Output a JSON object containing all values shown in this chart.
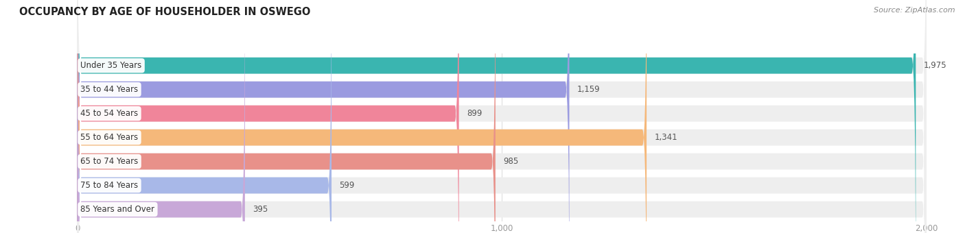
{
  "title": "OCCUPANCY BY AGE OF HOUSEHOLDER IN OSWEGO",
  "source": "Source: ZipAtlas.com",
  "categories": [
    "Under 35 Years",
    "35 to 44 Years",
    "45 to 54 Years",
    "55 to 64 Years",
    "65 to 74 Years",
    "75 to 84 Years",
    "85 Years and Over"
  ],
  "values": [
    1975,
    1159,
    899,
    1341,
    985,
    599,
    395
  ],
  "bar_colors": [
    "#3ab5b0",
    "#9b9be0",
    "#f0859a",
    "#f5b87a",
    "#e8918a",
    "#a8b8e8",
    "#c8a8d8"
  ],
  "xlim_max": 2100,
  "xlim_data_max": 2000,
  "xticks": [
    0,
    1000,
    2000
  ],
  "xtick_labels": [
    "0",
    "1,000",
    "2,000"
  ],
  "title_fontsize": 10.5,
  "label_fontsize": 8.5,
  "value_fontsize": 8.5,
  "source_fontsize": 8,
  "background_color": "#ffffff",
  "bar_height": 0.68,
  "bar_bg_color": "#eeeeee",
  "bar_bg_shadow": "#e0e0e0",
  "value_color": "#555555",
  "label_color": "#333333",
  "title_color": "#222222",
  "source_color": "#888888",
  "grid_color": "#dddddd"
}
